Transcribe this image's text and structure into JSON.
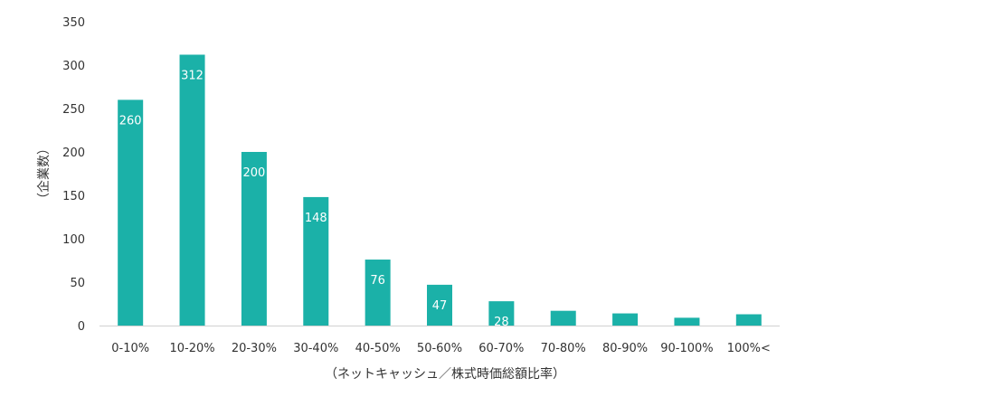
{
  "chart_data": {
    "type": "bar",
    "categories": [
      "0-10%",
      "10-20%",
      "20-30%",
      "30-40%",
      "40-50%",
      "50-60%",
      "60-70%",
      "70-80%",
      "80-90%",
      "90-100%",
      "100%<"
    ],
    "values": [
      260,
      312,
      200,
      148,
      76,
      47,
      28,
      17,
      14,
      9,
      13
    ],
    "data_labels": [
      "260",
      "312",
      "200",
      "148",
      "76",
      "47",
      "28",
      "",
      "",
      "",
      ""
    ],
    "xlabel": "（ネットキャッシュ／株式時価総額比率）",
    "ylabel": "（企業数）",
    "ylim": [
      0,
      350
    ],
    "yticks": [
      0,
      50,
      100,
      150,
      200,
      250,
      300,
      350
    ],
    "grid": false,
    "legend": "none",
    "colors": {
      "bar": "#1bb1a8",
      "axis": "#d0d0d0",
      "text": "#333333",
      "label": "#ffffff"
    }
  }
}
